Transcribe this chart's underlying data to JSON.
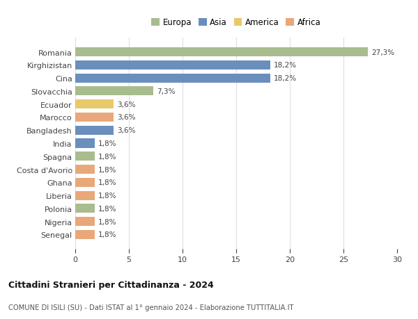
{
  "categories": [
    "Romania",
    "Kirghizistan",
    "Cina",
    "Slovacchia",
    "Ecuador",
    "Marocco",
    "Bangladesh",
    "India",
    "Spagna",
    "Costa d'Avorio",
    "Ghana",
    "Liberia",
    "Polonia",
    "Nigeria",
    "Senegal"
  ],
  "values": [
    27.3,
    18.2,
    18.2,
    7.3,
    3.6,
    3.6,
    3.6,
    1.8,
    1.8,
    1.8,
    1.8,
    1.8,
    1.8,
    1.8,
    1.8
  ],
  "labels": [
    "27,3%",
    "18,2%",
    "18,2%",
    "7,3%",
    "3,6%",
    "3,6%",
    "3,6%",
    "1,8%",
    "1,8%",
    "1,8%",
    "1,8%",
    "1,8%",
    "1,8%",
    "1,8%",
    "1,8%"
  ],
  "colors": [
    "#a8bc8f",
    "#6a8fbd",
    "#6a8fbd",
    "#a8bc8f",
    "#e8c96a",
    "#e8a87a",
    "#6a8fbd",
    "#6a8fbd",
    "#a8bc8f",
    "#e8a87a",
    "#e8a87a",
    "#e8a87a",
    "#a8bc8f",
    "#e8a87a",
    "#e8a87a"
  ],
  "continent_colors": {
    "Europa": "#a8bc8f",
    "Asia": "#6a8fbd",
    "America": "#e8c96a",
    "Africa": "#e8a87a"
  },
  "title": "Cittadini Stranieri per Cittadinanza - 2024",
  "subtitle": "COMUNE DI ISILI (SU) - Dati ISTAT al 1° gennaio 2024 - Elaborazione TUTTITALIA.IT",
  "xlim": [
    0,
    30
  ],
  "xticks": [
    0,
    5,
    10,
    15,
    20,
    25,
    30
  ],
  "bg_color": "#ffffff",
  "grid_color": "#dddddd",
  "bar_height": 0.7
}
